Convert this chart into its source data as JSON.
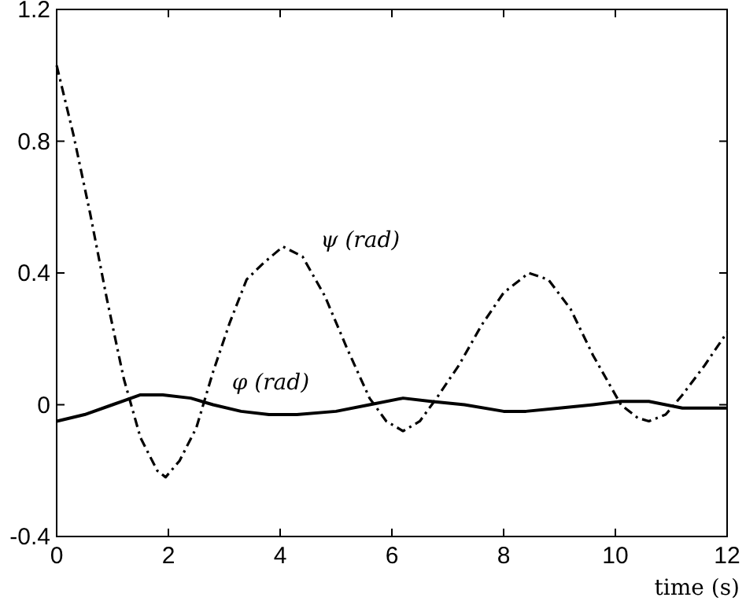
{
  "chart_data": {
    "type": "line",
    "xlabel": "time (s)",
    "xlim": [
      0,
      12
    ],
    "ylim": [
      -0.4,
      1.2
    ],
    "xticks": [
      0,
      2,
      4,
      6,
      8,
      10,
      12
    ],
    "yticks": [
      {
        "value": -0.4,
        "label": "-0.4"
      },
      0,
      0.4,
      0.8,
      1.2
    ],
    "grid": false,
    "series": [
      {
        "name": "ψ (rad)",
        "color": "#000000",
        "line_style": "dashdot",
        "x": [
          0,
          0.3,
          0.6,
          0.9,
          1.2,
          1.5,
          1.8,
          1.95,
          2.2,
          2.5,
          2.8,
          3.1,
          3.4,
          3.7,
          4.05,
          4.4,
          4.8,
          5.2,
          5.6,
          5.9,
          6.2,
          6.5,
          6.8,
          7.2,
          7.6,
          8.0,
          8.45,
          8.8,
          9.2,
          9.6,
          10.1,
          10.4,
          10.6,
          10.9,
          11.2,
          11.6,
          12
        ],
        "values": [
          1.03,
          0.82,
          0.58,
          0.32,
          0.08,
          -0.1,
          -0.2,
          -0.22,
          -0.17,
          -0.07,
          0.1,
          0.25,
          0.38,
          0.43,
          0.48,
          0.45,
          0.33,
          0.17,
          0.02,
          -0.05,
          -0.08,
          -0.05,
          0.02,
          0.12,
          0.24,
          0.34,
          0.4,
          0.38,
          0.29,
          0.15,
          0.0,
          -0.04,
          -0.05,
          -0.03,
          0.03,
          0.12,
          0.22
        ]
      },
      {
        "name": "φ (rad)",
        "color": "#000000",
        "line_style": "solid",
        "x": [
          0,
          0.5,
          1.0,
          1.5,
          1.9,
          2.4,
          2.8,
          3.3,
          3.8,
          4.3,
          5.0,
          5.6,
          6.2,
          6.7,
          7.3,
          8.0,
          8.4,
          9.0,
          9.6,
          10.1,
          10.6,
          11.2,
          12
        ],
        "values": [
          -0.05,
          -0.03,
          0.0,
          0.03,
          0.03,
          0.02,
          0.0,
          -0.02,
          -0.03,
          -0.03,
          -0.02,
          0.0,
          0.02,
          0.01,
          0.0,
          -0.02,
          -0.02,
          -0.01,
          0.0,
          0.01,
          0.01,
          -0.01,
          -0.01
        ]
      }
    ]
  }
}
